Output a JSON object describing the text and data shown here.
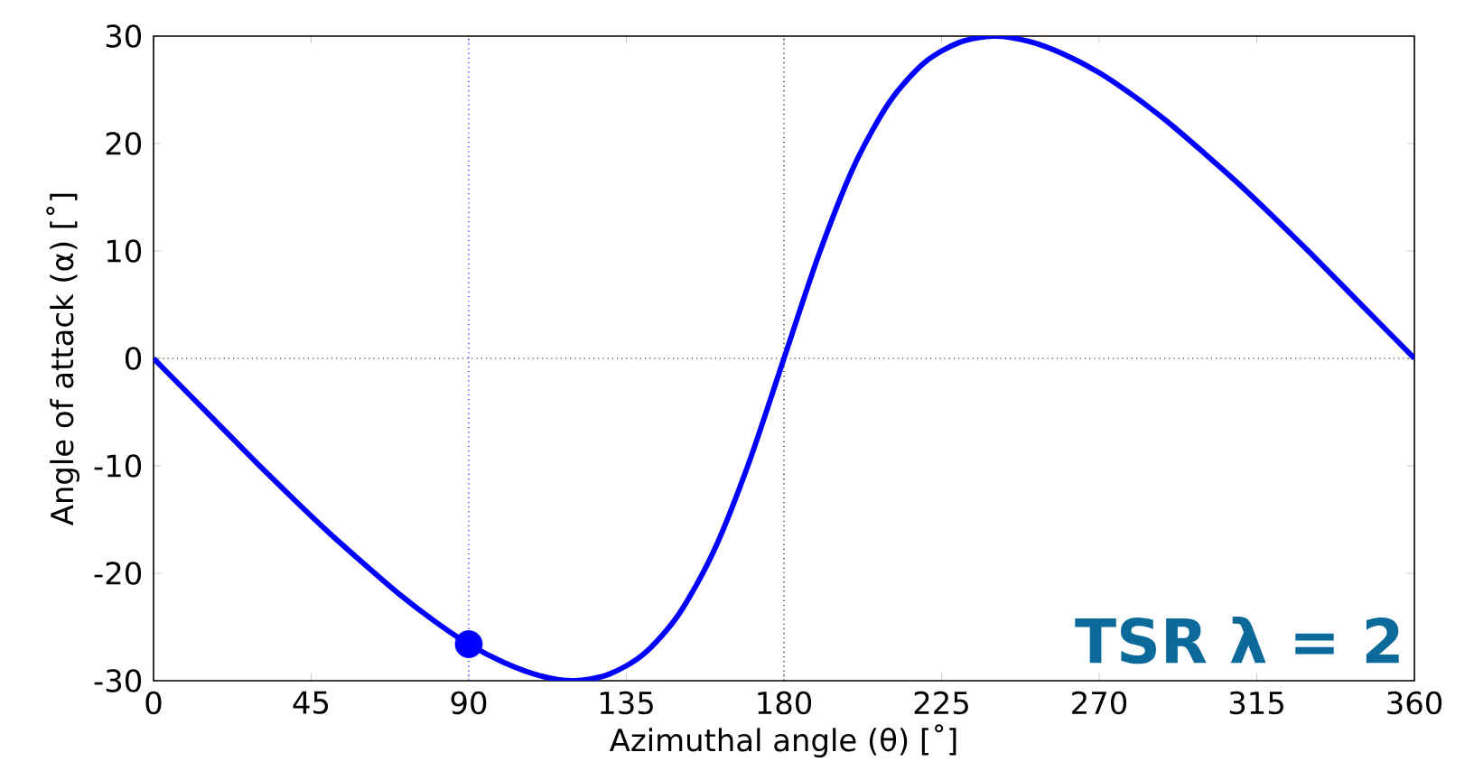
{
  "chart_data": {
    "type": "line",
    "xlabel": "Azimuthal angle (θ) [˚]",
    "ylabel": "Angle of attack (α) [˚]",
    "annotations": [
      "TSR λ = 2"
    ],
    "xlim": [
      0,
      360
    ],
    "xticks": [
      0,
      45,
      90,
      135,
      180,
      225,
      270,
      315,
      360
    ],
    "ylim": [
      -30,
      30
    ],
    "yticks": [
      -30,
      -20,
      -10,
      0,
      10,
      20,
      30
    ],
    "grid": false,
    "marker": "none",
    "line_style": "solid",
    "ref_lines": [
      {
        "axis": "y",
        "value": 0,
        "color": "#000000",
        "line_style": "dotted"
      },
      {
        "axis": "x",
        "value": 180,
        "color": "#000000",
        "line_style": "dotted"
      },
      {
        "axis": "x",
        "value": 90,
        "color": "#0000ff",
        "line_style": "dotted"
      }
    ],
    "series": [
      {
        "color": "#0000ff",
        "x": [
          0,
          10,
          20,
          30,
          40,
          50,
          60,
          70,
          80,
          90,
          100,
          110,
          120,
          130,
          140,
          150,
          160,
          170,
          180,
          190,
          200,
          210,
          220,
          230,
          240,
          250,
          260,
          270,
          280,
          290,
          300,
          310,
          320,
          330,
          340,
          350,
          360
        ],
        "values": [
          0,
          -3.3,
          -6.6,
          -9.9,
          -13.1,
          -16.2,
          -19.1,
          -21.9,
          -24.4,
          -26.6,
          -28.3,
          -29.5,
          -30,
          -29.4,
          -27.5,
          -23.8,
          -17.9,
          -9.7,
          0,
          9.7,
          17.9,
          23.8,
          27.5,
          29.4,
          30,
          29.5,
          28.3,
          26.6,
          24.4,
          21.9,
          19.1,
          16.2,
          13.1,
          9.9,
          6.6,
          3.3,
          0
        ]
      },
      {
        "type": "scatter",
        "marker": "circle",
        "color": "#0000ff",
        "x": [
          90
        ],
        "values": [
          -26.6
        ]
      }
    ]
  }
}
